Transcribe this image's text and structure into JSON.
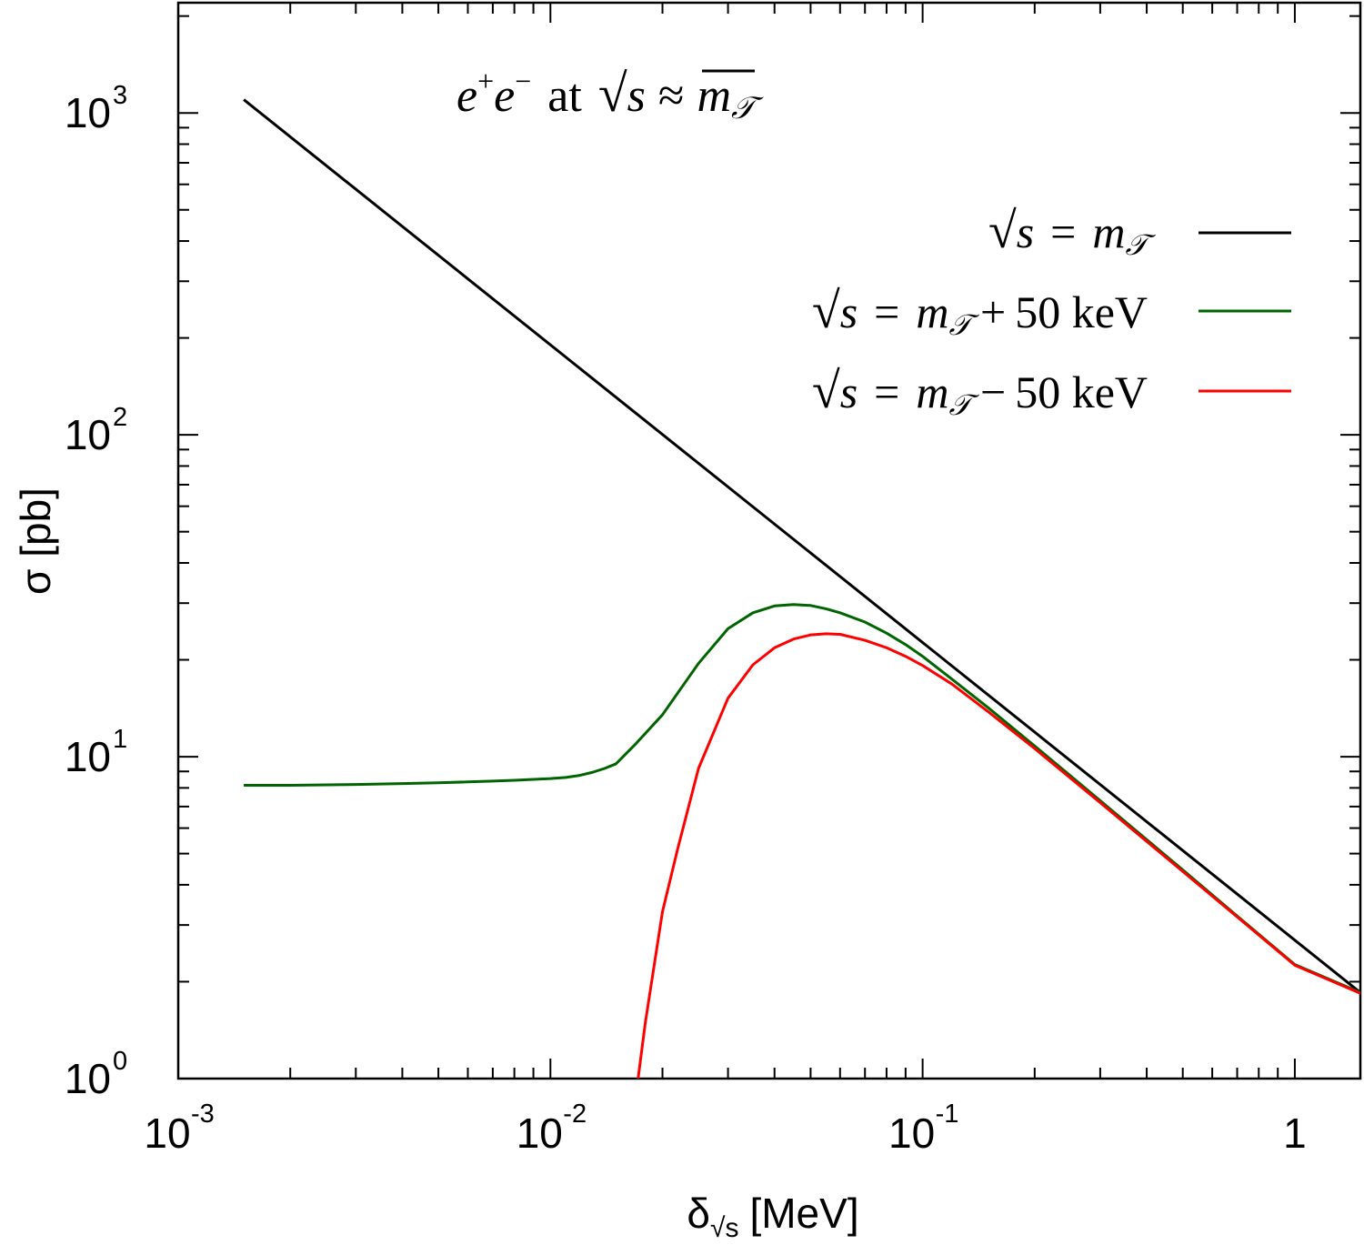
{
  "chart_data": {
    "type": "line",
    "title": "e⁺e⁻ at √s ≈ m𝒯",
    "title_parts": {
      "e": "e",
      "plus": "+",
      "minus": "−",
      "at": "at",
      "sqrt": "√",
      "s": "s",
      "approx": "≈",
      "m": "m",
      "T": "𝒯"
    },
    "xlabel": {
      "delta": "δ",
      "sub": "√s",
      "unit": "[MeV]"
    },
    "ylabel": "σ [pb]",
    "xscale": "log",
    "yscale": "log",
    "xlim": [
      0.001,
      1.5
    ],
    "ylim": [
      1,
      2200
    ],
    "x_ticks": [
      {
        "value": 0.001,
        "base": "10",
        "exp": "-3"
      },
      {
        "value": 0.01,
        "base": "10",
        "exp": "-2"
      },
      {
        "value": 0.1,
        "base": "10",
        "exp": "-1"
      },
      {
        "value": 1,
        "base": "1",
        "exp": ""
      }
    ],
    "y_ticks": [
      {
        "value": 1,
        "base": "10",
        "exp": "0"
      },
      {
        "value": 10,
        "base": "10",
        "exp": "1"
      },
      {
        "value": 100,
        "base": "10",
        "exp": "2"
      },
      {
        "value": 1000,
        "base": "10",
        "exp": "3"
      }
    ],
    "legend_position": "top-right",
    "series": [
      {
        "name": "√s = m𝒯",
        "label": {
          "sqrt": "√",
          "s": "s",
          "eq": "=",
          "m": "m",
          "T": "𝒯",
          "op": "",
          "offset": ""
        },
        "color": "#000000",
        "x": [
          0.0015,
          1.5
        ],
        "y": [
          1100,
          1.85
        ]
      },
      {
        "name": "√s = m𝒯 + 50 keV",
        "label": {
          "sqrt": "√",
          "s": "s",
          "eq": "=",
          "m": "m",
          "T": "𝒯",
          "op": "+",
          "offset": "50 keV"
        },
        "color": "#006400",
        "x": [
          0.0015,
          0.002,
          0.003,
          0.004,
          0.005,
          0.006,
          0.007,
          0.008,
          0.009,
          0.01,
          0.011,
          0.012,
          0.013,
          0.014,
          0.015,
          0.017,
          0.02,
          0.025,
          0.03,
          0.035,
          0.04,
          0.045,
          0.05,
          0.055,
          0.06,
          0.07,
          0.08,
          0.09,
          0.1,
          0.12,
          0.15,
          0.2,
          0.3,
          0.5,
          0.7,
          1.0,
          1.5
        ],
        "y": [
          8.15,
          8.15,
          8.2,
          8.25,
          8.3,
          8.35,
          8.4,
          8.45,
          8.5,
          8.55,
          8.62,
          8.75,
          8.95,
          9.2,
          9.5,
          11.0,
          13.5,
          19.5,
          25.0,
          28.0,
          29.4,
          29.7,
          29.5,
          28.8,
          28.0,
          26.2,
          24.2,
          22.3,
          20.5,
          17.4,
          14.2,
          10.8,
          7.3,
          4.45,
          3.2,
          2.26,
          1.85
        ]
      },
      {
        "name": "√s = m𝒯 − 50 keV",
        "label": {
          "sqrt": "√",
          "s": "s",
          "eq": "=",
          "m": "m",
          "T": "𝒯",
          "op": "−",
          "offset": "50 keV"
        },
        "color": "#ff0000",
        "x": [
          0.0172,
          0.018,
          0.02,
          0.022,
          0.025,
          0.03,
          0.035,
          0.04,
          0.045,
          0.05,
          0.055,
          0.06,
          0.07,
          0.08,
          0.09,
          0.1,
          0.12,
          0.15,
          0.2,
          0.3,
          0.5,
          0.7,
          1.0,
          1.5
        ],
        "y": [
          1.0,
          1.5,
          3.3,
          5.2,
          9.2,
          15.2,
          19.3,
          21.8,
          23.2,
          23.9,
          24.1,
          24.0,
          23.0,
          21.8,
          20.5,
          19.2,
          16.8,
          13.8,
          10.6,
          7.2,
          4.4,
          3.18,
          2.25,
          1.84
        ]
      }
    ]
  }
}
